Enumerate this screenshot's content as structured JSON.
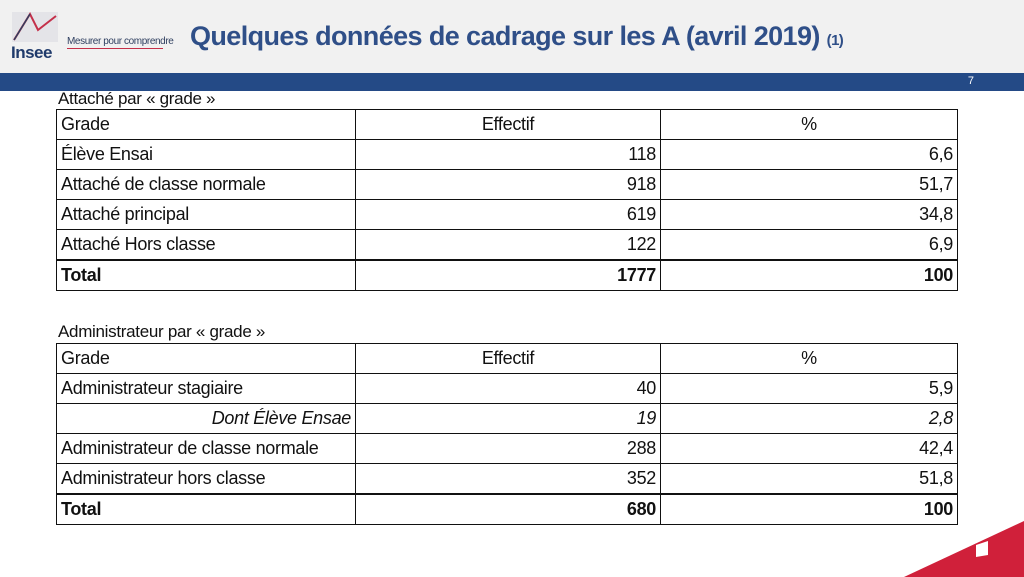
{
  "header": {
    "logo_text": "Insee",
    "tagline": "Mesurer pour comprendre",
    "title": "Quelques données de cadrage sur les A (avril 2019)",
    "title_note": "(1)",
    "page_number": "7"
  },
  "colors": {
    "header_bg": "#f1f1f1",
    "title_blue": "#2f4f88",
    "band_blue": "#244a86",
    "accent_red": "#d0203a"
  },
  "table1": {
    "caption": "Attaché par « grade »",
    "headers": [
      "Grade",
      "Effectif",
      "%"
    ],
    "rows": [
      [
        "Élève Ensai",
        "118",
        "6,6"
      ],
      [
        "Attaché de classe normale",
        "918",
        "51,7"
      ],
      [
        "Attaché principal",
        "619",
        "34,8"
      ],
      [
        "Attaché Hors classe",
        "122",
        "6,9"
      ]
    ],
    "total": [
      "Total",
      "1777",
      "100"
    ]
  },
  "table2": {
    "caption": "Administrateur par « grade »",
    "headers": [
      "Grade",
      "Effectif",
      "%"
    ],
    "rows": [
      [
        "Administrateur stagiaire",
        "40",
        "5,9"
      ],
      [
        "Dont Élève Ensae",
        "19",
        "2,8"
      ],
      [
        "Administrateur de classe normale",
        "288",
        "42,4"
      ],
      [
        "Administrateur hors classe",
        "352",
        "51,8"
      ]
    ],
    "total": [
      "Total",
      "680",
      "100"
    ]
  }
}
